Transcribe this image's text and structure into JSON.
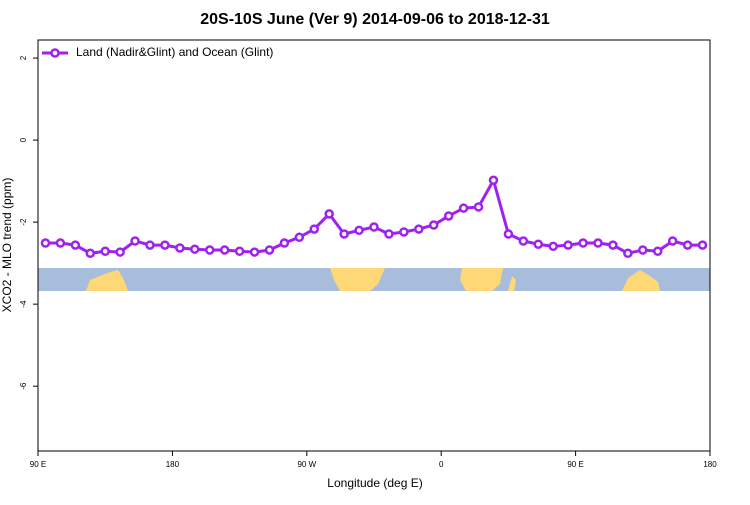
{
  "chart_data": {
    "type": "line",
    "title": "20S-10S June (Ver 9)   2014-09-06 to 2018-12-31",
    "xlabel": "Longitude (deg E)",
    "ylabel": "XCO2 - MLO trend (ppm)",
    "x": [
      95,
      105,
      115,
      125,
      135,
      145,
      155,
      165,
      175,
      185,
      195,
      205,
      215,
      225,
      235,
      245,
      255,
      265,
      275,
      285,
      295,
      305,
      315,
      325,
      335,
      345,
      355,
      365,
      375,
      385,
      395,
      405,
      415,
      425,
      435,
      445,
      455,
      465,
      475,
      485,
      495,
      505,
      515,
      525,
      535
    ],
    "series": [
      {
        "name": "Land (Nadir&Glint) and Ocean (Glint)",
        "color": "#a020f0",
        "values": [
          -2.51,
          -2.51,
          -2.56,
          -2.76,
          -2.71,
          -2.73,
          -2.46,
          -2.56,
          -2.56,
          -2.63,
          -2.66,
          -2.68,
          -2.68,
          -2.71,
          -2.73,
          -2.68,
          -2.51,
          -2.37,
          -2.17,
          -1.8,
          -2.29,
          -2.2,
          -2.12,
          -2.29,
          -2.24,
          -2.17,
          -2.07,
          -1.85,
          -1.66,
          -1.63,
          -0.98,
          -2.29,
          -2.46,
          -2.54,
          -2.59,
          -2.56,
          -2.51,
          -2.51,
          -2.56,
          -2.76,
          -2.68,
          -2.71,
          -2.46,
          -2.56,
          -2.56
        ]
      }
    ],
    "xlim": [
      90,
      540
    ],
    "xticks": [
      {
        "value": 90,
        "label": "90 E"
      },
      180,
      {
        "value": 270,
        "label": "90 W"
      },
      {
        "value": 360,
        "label": "0"
      },
      {
        "value": 450,
        "label": "90 E"
      },
      {
        "value": 540,
        "label": "180"
      }
    ],
    "ylim": [
      -7.58,
      2.44
    ],
    "yticks": [
      -6,
      -4,
      -2,
      0,
      2
    ],
    "legend": "top-left"
  }
}
